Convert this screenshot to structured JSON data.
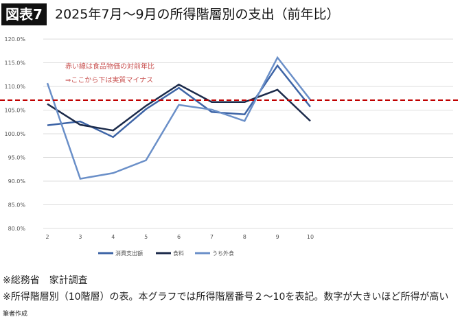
{
  "header": {
    "tag": "図表7",
    "title": "2025年7月～9月の所得階層別の支出（前年比）"
  },
  "chart_data": {
    "type": "line",
    "x": [
      2,
      3,
      4,
      5,
      6,
      7,
      8,
      9,
      10
    ],
    "ylim": [
      80,
      120
    ],
    "yticks": [
      80,
      85,
      90,
      95,
      100,
      105,
      110,
      115,
      120
    ],
    "ytick_labels": [
      "80.0%",
      "85.0%",
      "90.0%",
      "95.0%",
      "100.0%",
      "105.0%",
      "110.0%",
      "115.0%",
      "120.0%"
    ],
    "grid": true,
    "legend_placement": "bottom",
    "series": [
      {
        "name": "消費支出額",
        "color": "#3d64a6",
        "values": [
          101.8,
          102.6,
          99.3,
          105.2,
          109.7,
          104.6,
          104.1,
          114.4,
          105.7
        ]
      },
      {
        "name": "食料",
        "color": "#1b2a4a",
        "values": [
          106.3,
          101.9,
          100.7,
          105.9,
          110.4,
          106.7,
          106.7,
          109.3,
          102.7
        ]
      },
      {
        "name": "うち外食",
        "color": "#6a8fc8",
        "values": [
          110.7,
          90.5,
          91.7,
          94.4,
          106.1,
          105.1,
          102.7,
          116.1,
          107.2
        ]
      }
    ],
    "reference_line": {
      "value": 107.1,
      "color": "#c00000",
      "style": "dashed"
    },
    "annotations": [
      "赤い線は食品物価の対前年比",
      "⇒ここから下は実質マイナス"
    ]
  },
  "notes": [
    "※総務省　家計調査",
    "※所得階層別（10階層）の表。本グラフでは所得階層番号２～10を表記。数字が大きいほど所得が高い",
    "筆者作成"
  ]
}
